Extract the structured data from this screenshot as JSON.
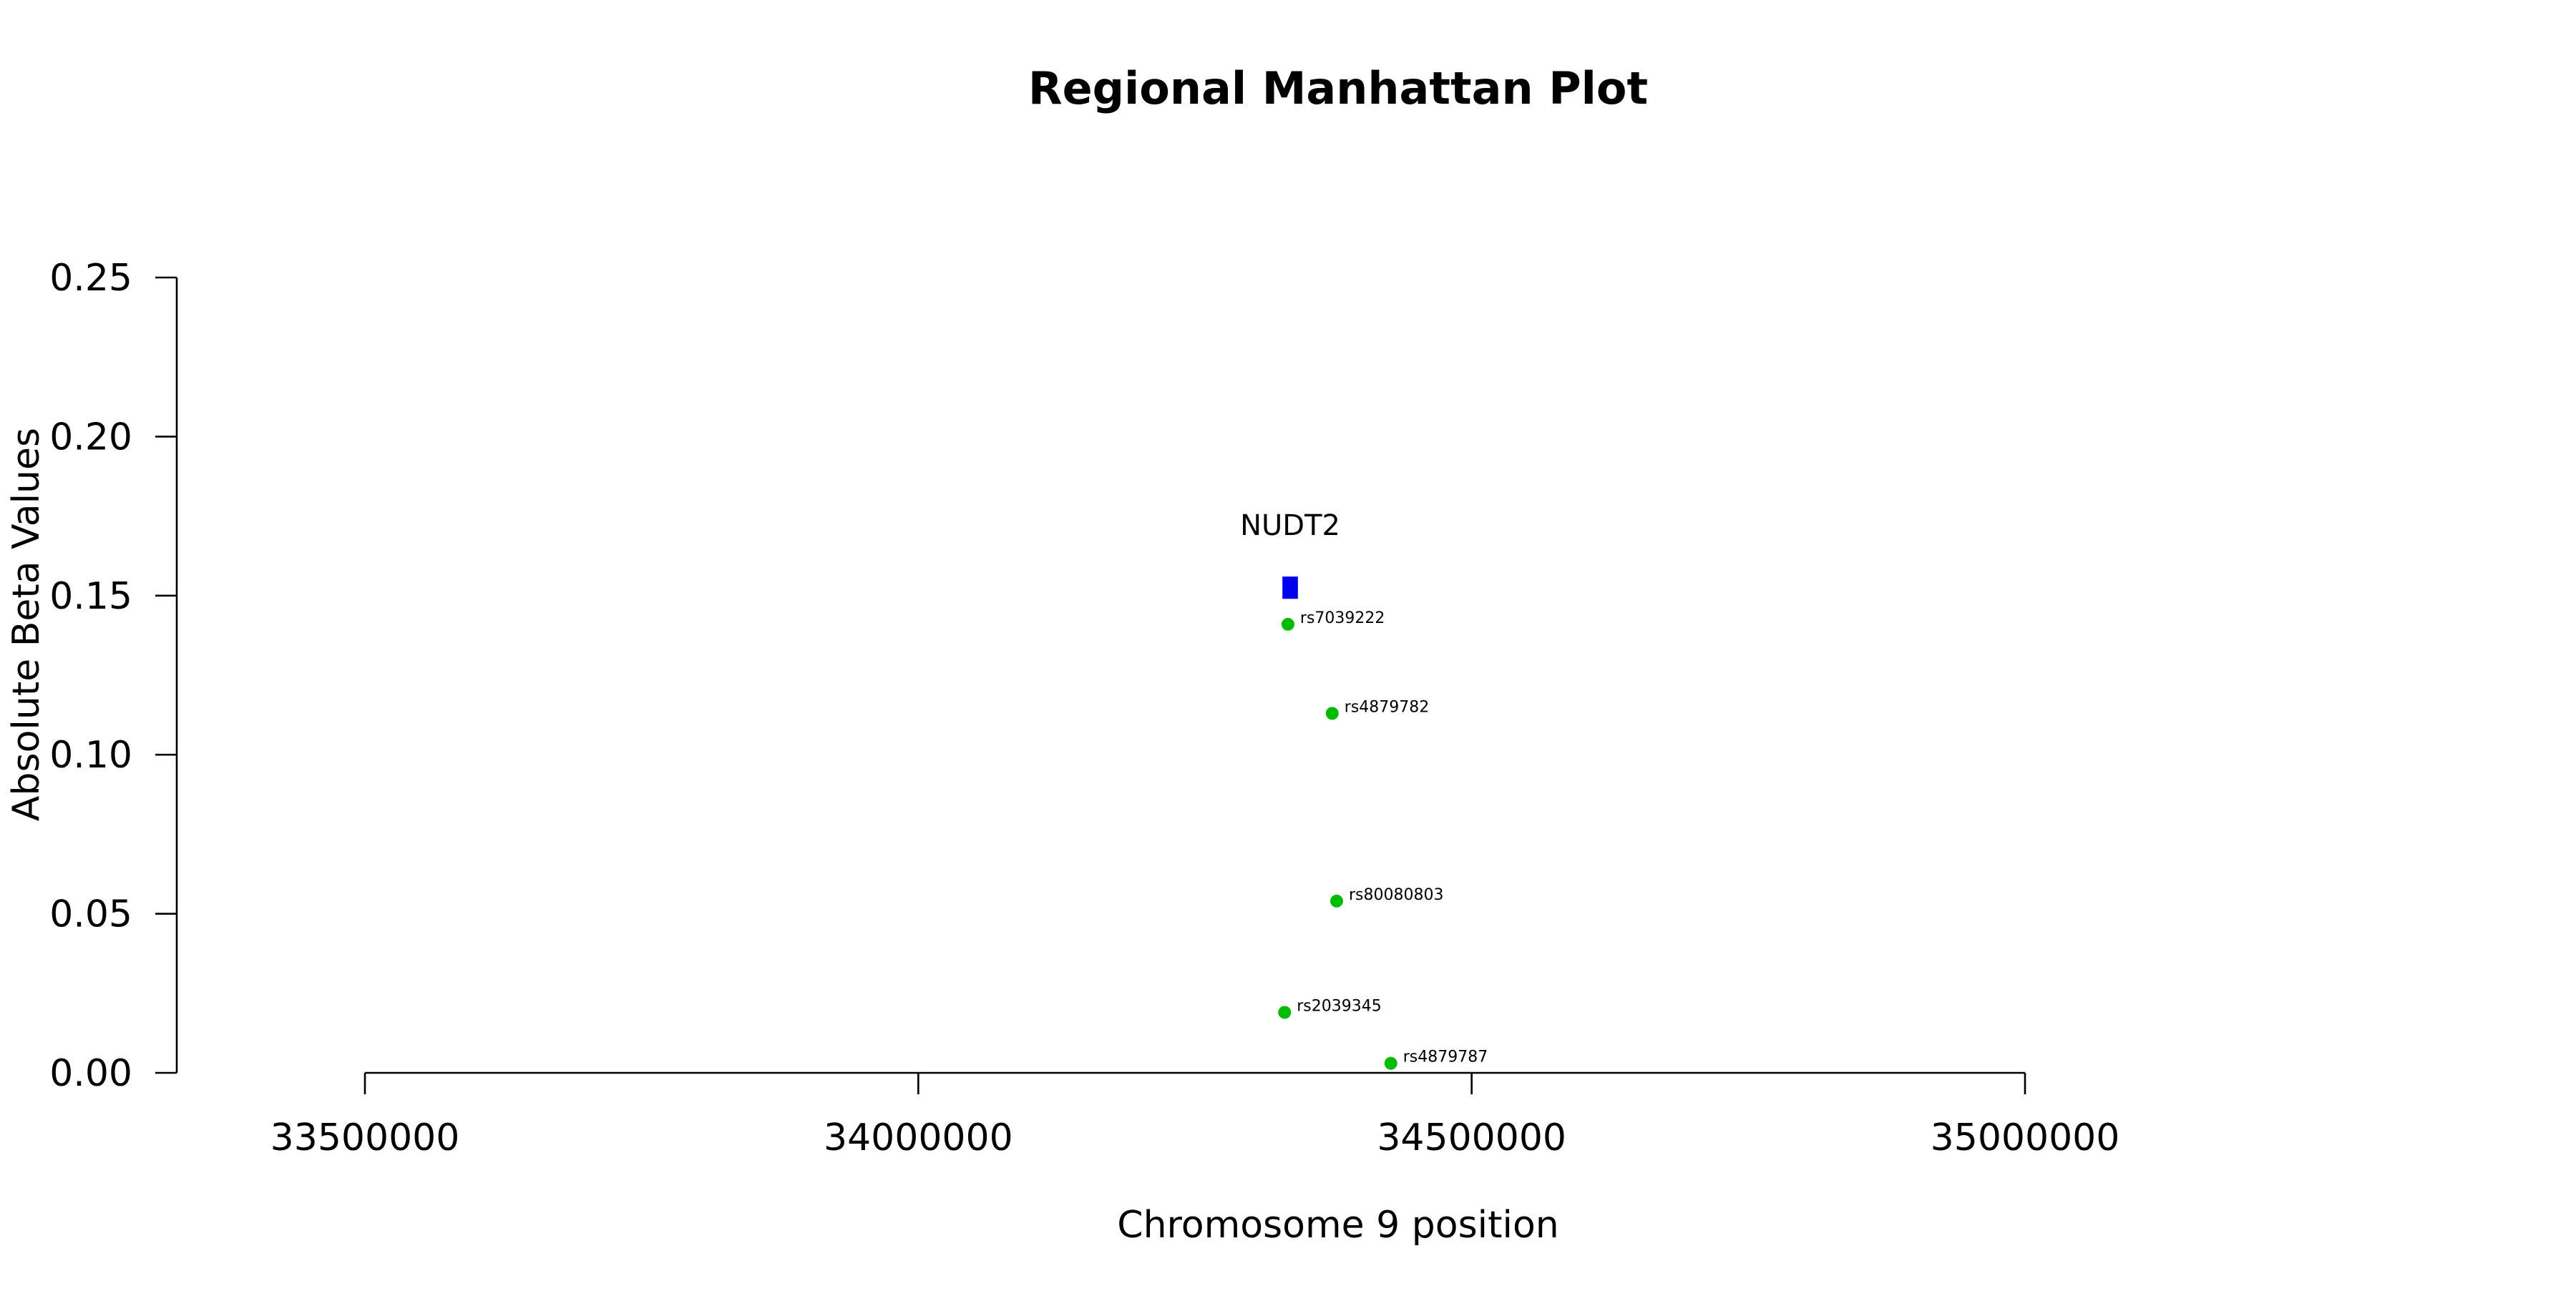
{
  "chart_data": {
    "type": "scatter",
    "title": "Regional Manhattan Plot",
    "xlabel": "Chromosome 9 position",
    "ylabel": "Absolute Beta Values",
    "xlim": [
      33500000,
      35000000
    ],
    "ylim": [
      0,
      0.25
    ],
    "x_ticks": [
      33500000,
      34000000,
      34500000,
      35000000
    ],
    "x_tick_labels": [
      "33500000",
      "34000000",
      "34500000",
      "35000000"
    ],
    "y_ticks": [
      0,
      0.05,
      0.1,
      0.15,
      0.2,
      0.25
    ],
    "y_tick_labels": [
      "0.00",
      "0.05",
      "0.10",
      "0.15",
      "0.20",
      "0.25"
    ],
    "grid": false,
    "gene": {
      "name": "NUDT2",
      "start": 34329000,
      "end": 34343000,
      "y_min": 0.149,
      "y_max": 0.156,
      "color": "#0000ee"
    },
    "snp_color": "#00bb00",
    "snps": [
      {
        "id": "rs7039222",
        "x": 34334000,
        "y": 0.141
      },
      {
        "id": "rs4879782",
        "x": 34374000,
        "y": 0.113
      },
      {
        "id": "rs80080803",
        "x": 34378000,
        "y": 0.054
      },
      {
        "id": "rs2039345",
        "x": 34331000,
        "y": 0.019
      },
      {
        "id": "rs4879787",
        "x": 34427000,
        "y": 0.003
      }
    ]
  }
}
